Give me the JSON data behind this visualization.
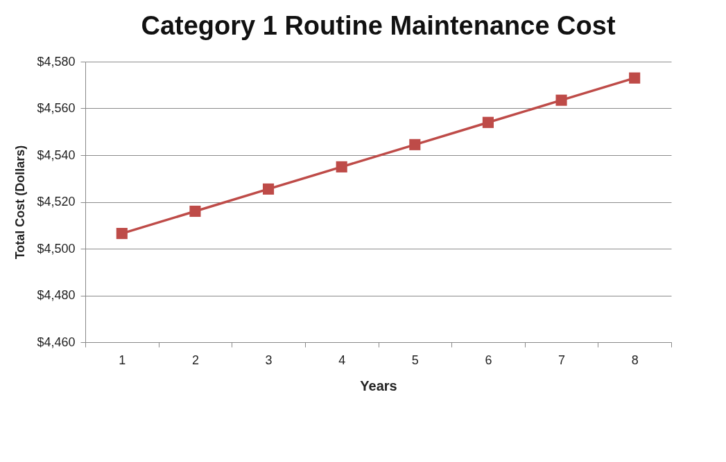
{
  "chart_data": {
    "type": "line",
    "title": "Category 1 Routine Maintenance  Cost",
    "xlabel": "Years",
    "ylabel": "Total Cost (Dollars)",
    "categories": [
      "1",
      "2",
      "3",
      "4",
      "5",
      "6",
      "7",
      "8"
    ],
    "series": [
      {
        "color": "#be4b48",
        "values": [
          4506.5,
          4516,
          4525.5,
          4535,
          4544.5,
          4554,
          4563.5,
          4573
        ]
      }
    ],
    "ylim": [
      4460,
      4580
    ],
    "yticks": [
      {
        "value": 4460,
        "label": "$4,460"
      },
      {
        "value": 4480,
        "label": "$4,480"
      },
      {
        "value": 4500,
        "label": "$4,500"
      },
      {
        "value": 4520,
        "label": "$4,520"
      },
      {
        "value": 4540,
        "label": "$4,540"
      },
      {
        "value": 4560,
        "label": "$4,560"
      },
      {
        "value": 4580,
        "label": "$4,580"
      }
    ],
    "grid": "y",
    "marker": "square",
    "line_style": "solid"
  }
}
